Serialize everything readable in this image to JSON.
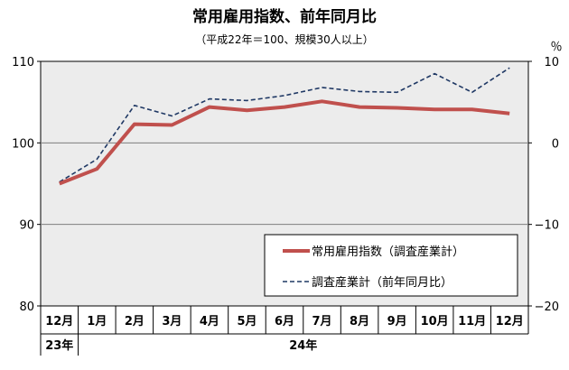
{
  "chart_data": {
    "type": "line",
    "title": "常用雇用指数、前年同月比",
    "subtitle": "（平成22年＝100、規模30人以上）",
    "right_axis_unit": "％",
    "categories": [
      "12月",
      "1月",
      "2月",
      "3月",
      "4月",
      "5月",
      "6月",
      "7月",
      "8月",
      "9月",
      "10月",
      "11月",
      "12月"
    ],
    "year_labels": [
      "23年",
      "24年"
    ],
    "left_axis": {
      "ylim": [
        80,
        110
      ],
      "ticks": [
        "80",
        "90",
        "100",
        "110"
      ]
    },
    "right_axis": {
      "ylim": [
        -20,
        10
      ],
      "ticks": [
        "−20",
        "−10",
        "0",
        "10"
      ]
    },
    "series": [
      {
        "name": "常用雇用指数（調査産業計）",
        "axis": "left",
        "color": "#c0504d",
        "style": "solid",
        "values": [
          95.0,
          96.8,
          102.3,
          102.2,
          104.4,
          104.0,
          104.4,
          105.1,
          104.4,
          104.3,
          104.1,
          104.1,
          103.6
        ]
      },
      {
        "name": "調査産業計（前年同月比）",
        "axis": "right",
        "color": "#1f3864",
        "style": "dashed",
        "values": [
          -4.8,
          -2.0,
          4.6,
          3.3,
          5.4,
          5.2,
          5.8,
          6.8,
          6.3,
          6.2,
          8.5,
          6.2,
          9.2
        ]
      }
    ],
    "grid": true,
    "legend_position": "bottom-right"
  }
}
